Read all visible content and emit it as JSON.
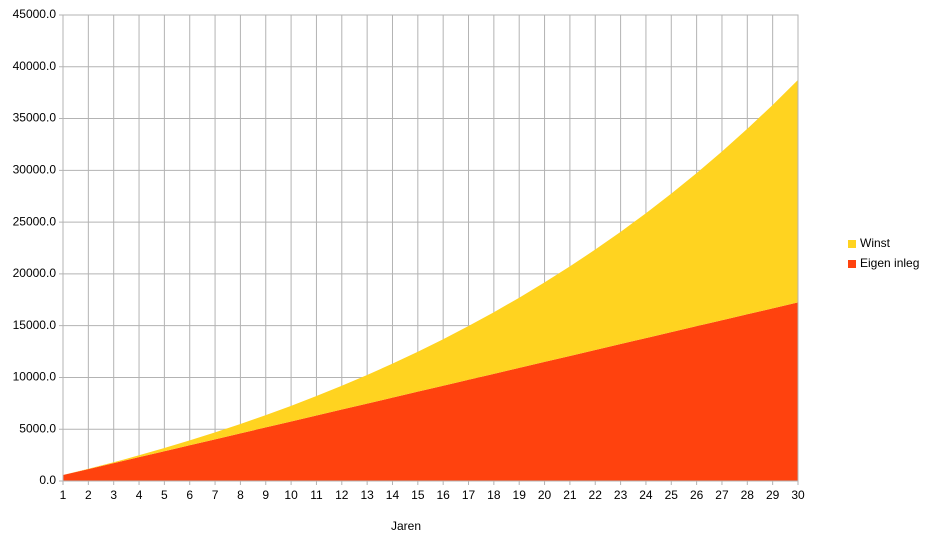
{
  "chart_data": {
    "type": "stacked_area",
    "x_label": "Jaren",
    "categories": [
      "1",
      "2",
      "3",
      "4",
      "5",
      "6",
      "7",
      "8",
      "9",
      "10",
      "11",
      "12",
      "13",
      "14",
      "15",
      "16",
      "17",
      "18",
      "19",
      "20",
      "21",
      "22",
      "23",
      "24",
      "25",
      "26",
      "27",
      "28",
      "29",
      "30"
    ],
    "series": [
      {
        "name": "Eigen inleg",
        "color": "#ff420e",
        "values": [
          575,
          1150,
          1725,
          2300,
          2875,
          3450,
          4025,
          4600,
          5175,
          5750,
          6325,
          6900,
          7475,
          8050,
          8625,
          9200,
          9775,
          10350,
          10925,
          11500,
          12075,
          12650,
          13225,
          13800,
          14375,
          14950,
          15525,
          16100,
          16675,
          17250
        ]
      },
      {
        "name": "Winst",
        "color": "#ffd320",
        "values": [
          0,
          29,
          89,
          181,
          307,
          469,
          668,
          907,
          1186,
          1509,
          1878,
          2295,
          2762,
          3282,
          3858,
          4492,
          5188,
          5948,
          6776,
          7675,
          8649,
          9701,
          10837,
          12059,
          13373,
          14783,
          16293,
          17910,
          19637,
          21482
        ]
      }
    ],
    "ylim": [
      0,
      45000
    ],
    "yticks": [
      {
        "value": 0,
        "label": "0.0"
      },
      {
        "value": 5000,
        "label": "5000.0"
      },
      {
        "value": 10000,
        "label": "10000.0"
      },
      {
        "value": 15000,
        "label": "15000.0"
      },
      {
        "value": 20000,
        "label": "20000.0"
      },
      {
        "value": 25000,
        "label": "25000.0"
      },
      {
        "value": 30000,
        "label": "30000.0"
      },
      {
        "value": 35000,
        "label": "35000.0"
      },
      {
        "value": 40000,
        "label": "40000.0"
      },
      {
        "value": 45000,
        "label": "45000.0"
      }
    ],
    "grid": true,
    "legend_position": "right"
  }
}
